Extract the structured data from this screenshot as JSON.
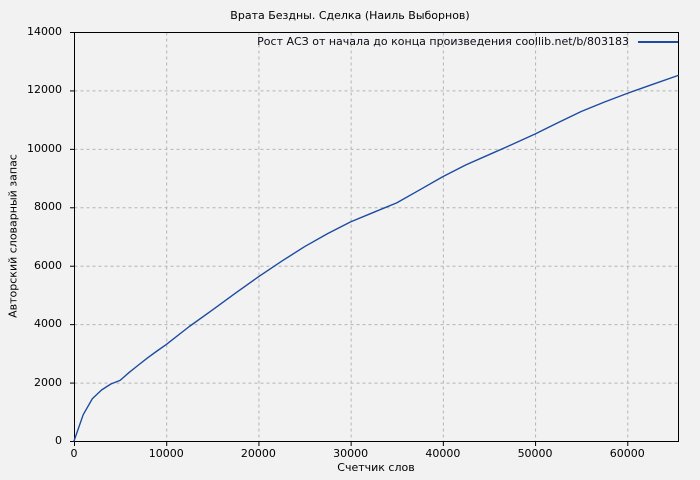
{
  "colors": {
    "background": "#f2f2f2",
    "axis": "#000000",
    "grid": "#b4b4b4",
    "line": "#1c4ba0",
    "text": "#000000"
  },
  "chart_data": {
    "type": "line",
    "title": "Врата Бездны. Сделка (Наиль Выборнов)",
    "xlabel": "Счетчик слов",
    "ylabel": "Авторский словарный запас",
    "xlim": [
      0,
      65500
    ],
    "ylim": [
      0,
      14000
    ],
    "x_ticks": [
      0,
      10000,
      20000,
      30000,
      40000,
      50000,
      60000
    ],
    "y_ticks": [
      0,
      2000,
      4000,
      6000,
      8000,
      10000,
      12000,
      14000
    ],
    "grid": true,
    "grid_style": "dashed",
    "legend_position": "top-inside",
    "series": [
      {
        "name": "Рост АСЗ от начала до конца произведения coollib.net/b/803183",
        "color": "#1c4ba0",
        "x": [
          0,
          1000,
          2000,
          3000,
          4000,
          5000,
          6000,
          7000,
          8000,
          9000,
          10000,
          12500,
          15000,
          17500,
          20000,
          22500,
          25000,
          27500,
          30000,
          32500,
          35000,
          37500,
          40000,
          42500,
          45000,
          47500,
          50000,
          52500,
          55000,
          57500,
          60000,
          62500,
          65500
        ],
        "y": [
          0,
          900,
          1450,
          1750,
          1950,
          2075,
          2350,
          2600,
          2850,
          3080,
          3300,
          3920,
          4480,
          5060,
          5620,
          6150,
          6650,
          7100,
          7500,
          7830,
          8150,
          8600,
          9050,
          9450,
          9800,
          10150,
          10510,
          10900,
          11280,
          11600,
          11900,
          12180,
          12510
        ]
      }
    ]
  }
}
